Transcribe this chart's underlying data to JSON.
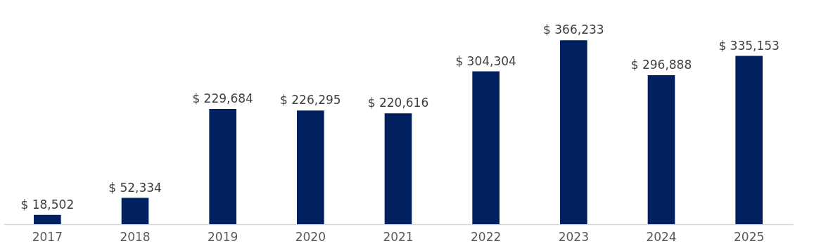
{
  "chart_data": {
    "type": "bar",
    "categories": [
      "2017",
      "2018",
      "2019",
      "2020",
      "2021",
      "2022",
      "2023",
      "2024",
      "2025"
    ],
    "values": [
      18502,
      52334,
      229684,
      226295,
      220616,
      304304,
      366233,
      296888,
      335153
    ],
    "value_labels": [
      "$ 18,502",
      "$ 52,334",
      "$ 229,684",
      "$ 226,295",
      "$ 220,616",
      "$ 304,304",
      "$ 366,233",
      "$ 296,888",
      "$ 335,153"
    ],
    "color": "#002060"
  }
}
